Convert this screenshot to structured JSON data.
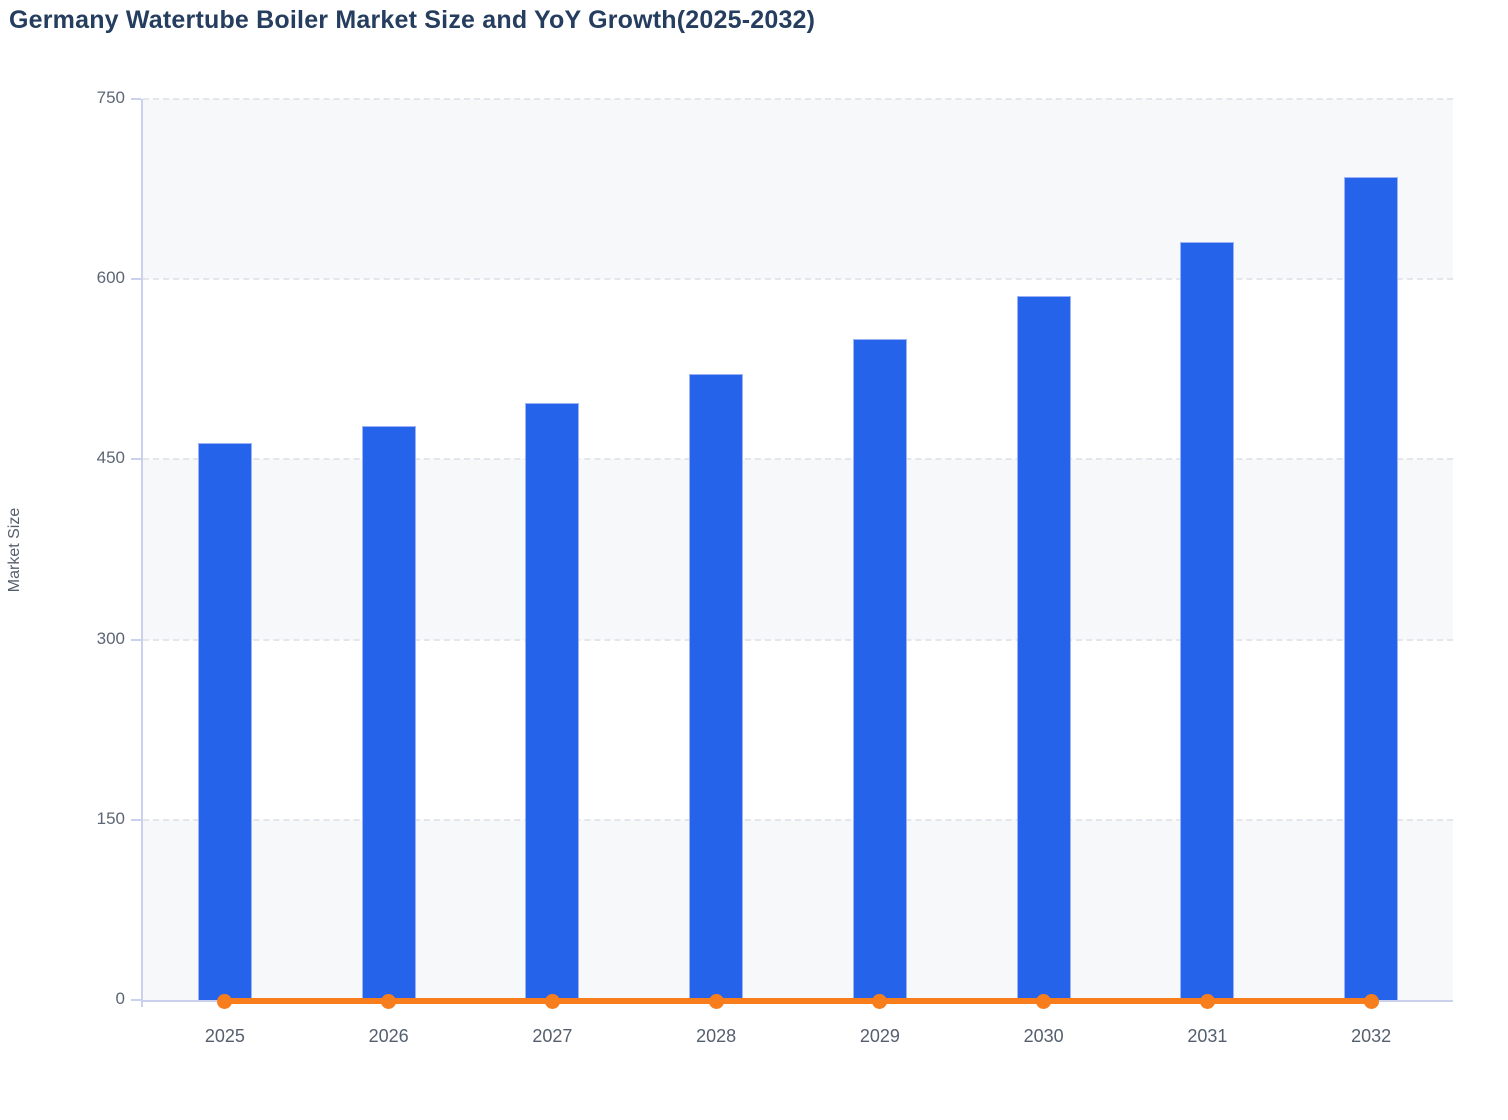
{
  "title": "Germany Watertube Boiler Market Size and YoY Growth(2025-2032)",
  "chart_data": {
    "type": "bar",
    "subtype": "column-and-line-combo",
    "title": "Germany Watertube Boiler Market Size and YoY Growth(2025-2032)",
    "categories": [
      "2025",
      "2026",
      "2027",
      "2028",
      "2029",
      "2030",
      "2031",
      "2032"
    ],
    "series": [
      {
        "name": "Market Size",
        "type": "column",
        "values": [
          464,
          478,
          497,
          521,
          550,
          586,
          631,
          685
        ]
      },
      {
        "name": "YoY Growth",
        "type": "line",
        "values": [
          0,
          0,
          0,
          0,
          0,
          0,
          0,
          0
        ]
      }
    ],
    "xlabel": "",
    "ylabel": "Market Size",
    "ylim": [
      0,
      750
    ],
    "yticks": [
      0,
      150,
      300,
      450,
      600,
      750
    ],
    "grid": "horizontal-dashed",
    "plot_bands": "alternating-gray-white",
    "legend": "none"
  },
  "colors": {
    "bar_fill": "#2563eb",
    "bar_border": "#9db3f4",
    "line_orange": "#f87d1c",
    "title_text": "#253d5e",
    "tick_text": "#5d6676",
    "axis_line": "#c9d1ec",
    "gridline": "#e4e6eb",
    "band_gray": "#f7f8fa",
    "background": "#ffffff"
  }
}
